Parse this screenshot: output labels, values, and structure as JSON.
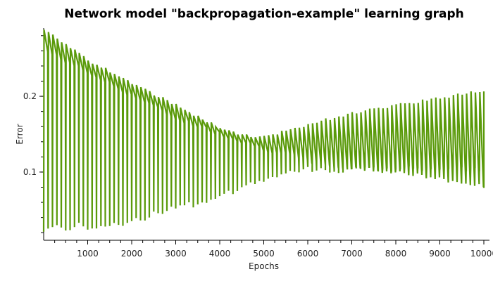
{
  "chart_data": {
    "type": "line",
    "title": "Network model \"backpropagation-example\" learning graph",
    "xlabel": "Epochs",
    "ylabel": "Error",
    "xlim": [
      0,
      10000
    ],
    "ylim": [
      0.01,
      0.29
    ],
    "x_ticks": [
      1000,
      2000,
      3000,
      4000,
      5000,
      6000,
      7000,
      8000,
      9000,
      10000
    ],
    "y_ticks": [
      0.1,
      0.2
    ],
    "line_color": "#5a9a0a",
    "grid": false,
    "legend": "none",
    "series": [
      {
        "upper_envelope": {
          "x": [
            0,
            500,
            1000,
            2000,
            3000,
            4000,
            4500,
            5000,
            6000,
            7000,
            8000,
            9000,
            10000
          ],
          "y": [
            0.29,
            0.27,
            0.25,
            0.22,
            0.19,
            0.16,
            0.15,
            0.148,
            0.165,
            0.18,
            0.19,
            0.2,
            0.21
          ]
        },
        "mid_envelope": {
          "x": [
            0,
            1000,
            2000,
            3000,
            4000,
            5000,
            6000,
            7000,
            8000,
            9000,
            10000
          ],
          "y": [
            0.26,
            0.23,
            0.2,
            0.17,
            0.15,
            0.13,
            0.115,
            0.105,
            0.1,
            0.09,
            0.08
          ]
        },
        "lower_envelope": {
          "x": [
            0,
            1000,
            2000,
            3000,
            4000,
            5000,
            6000,
            7000,
            8000,
            9000,
            10000
          ],
          "y": [
            0.02,
            0.022,
            0.03,
            0.045,
            0.065,
            0.085,
            0.095,
            0.1,
            0.1,
            0.1,
            0.1
          ]
        },
        "spike_period_epochs": 100
      }
    ]
  }
}
